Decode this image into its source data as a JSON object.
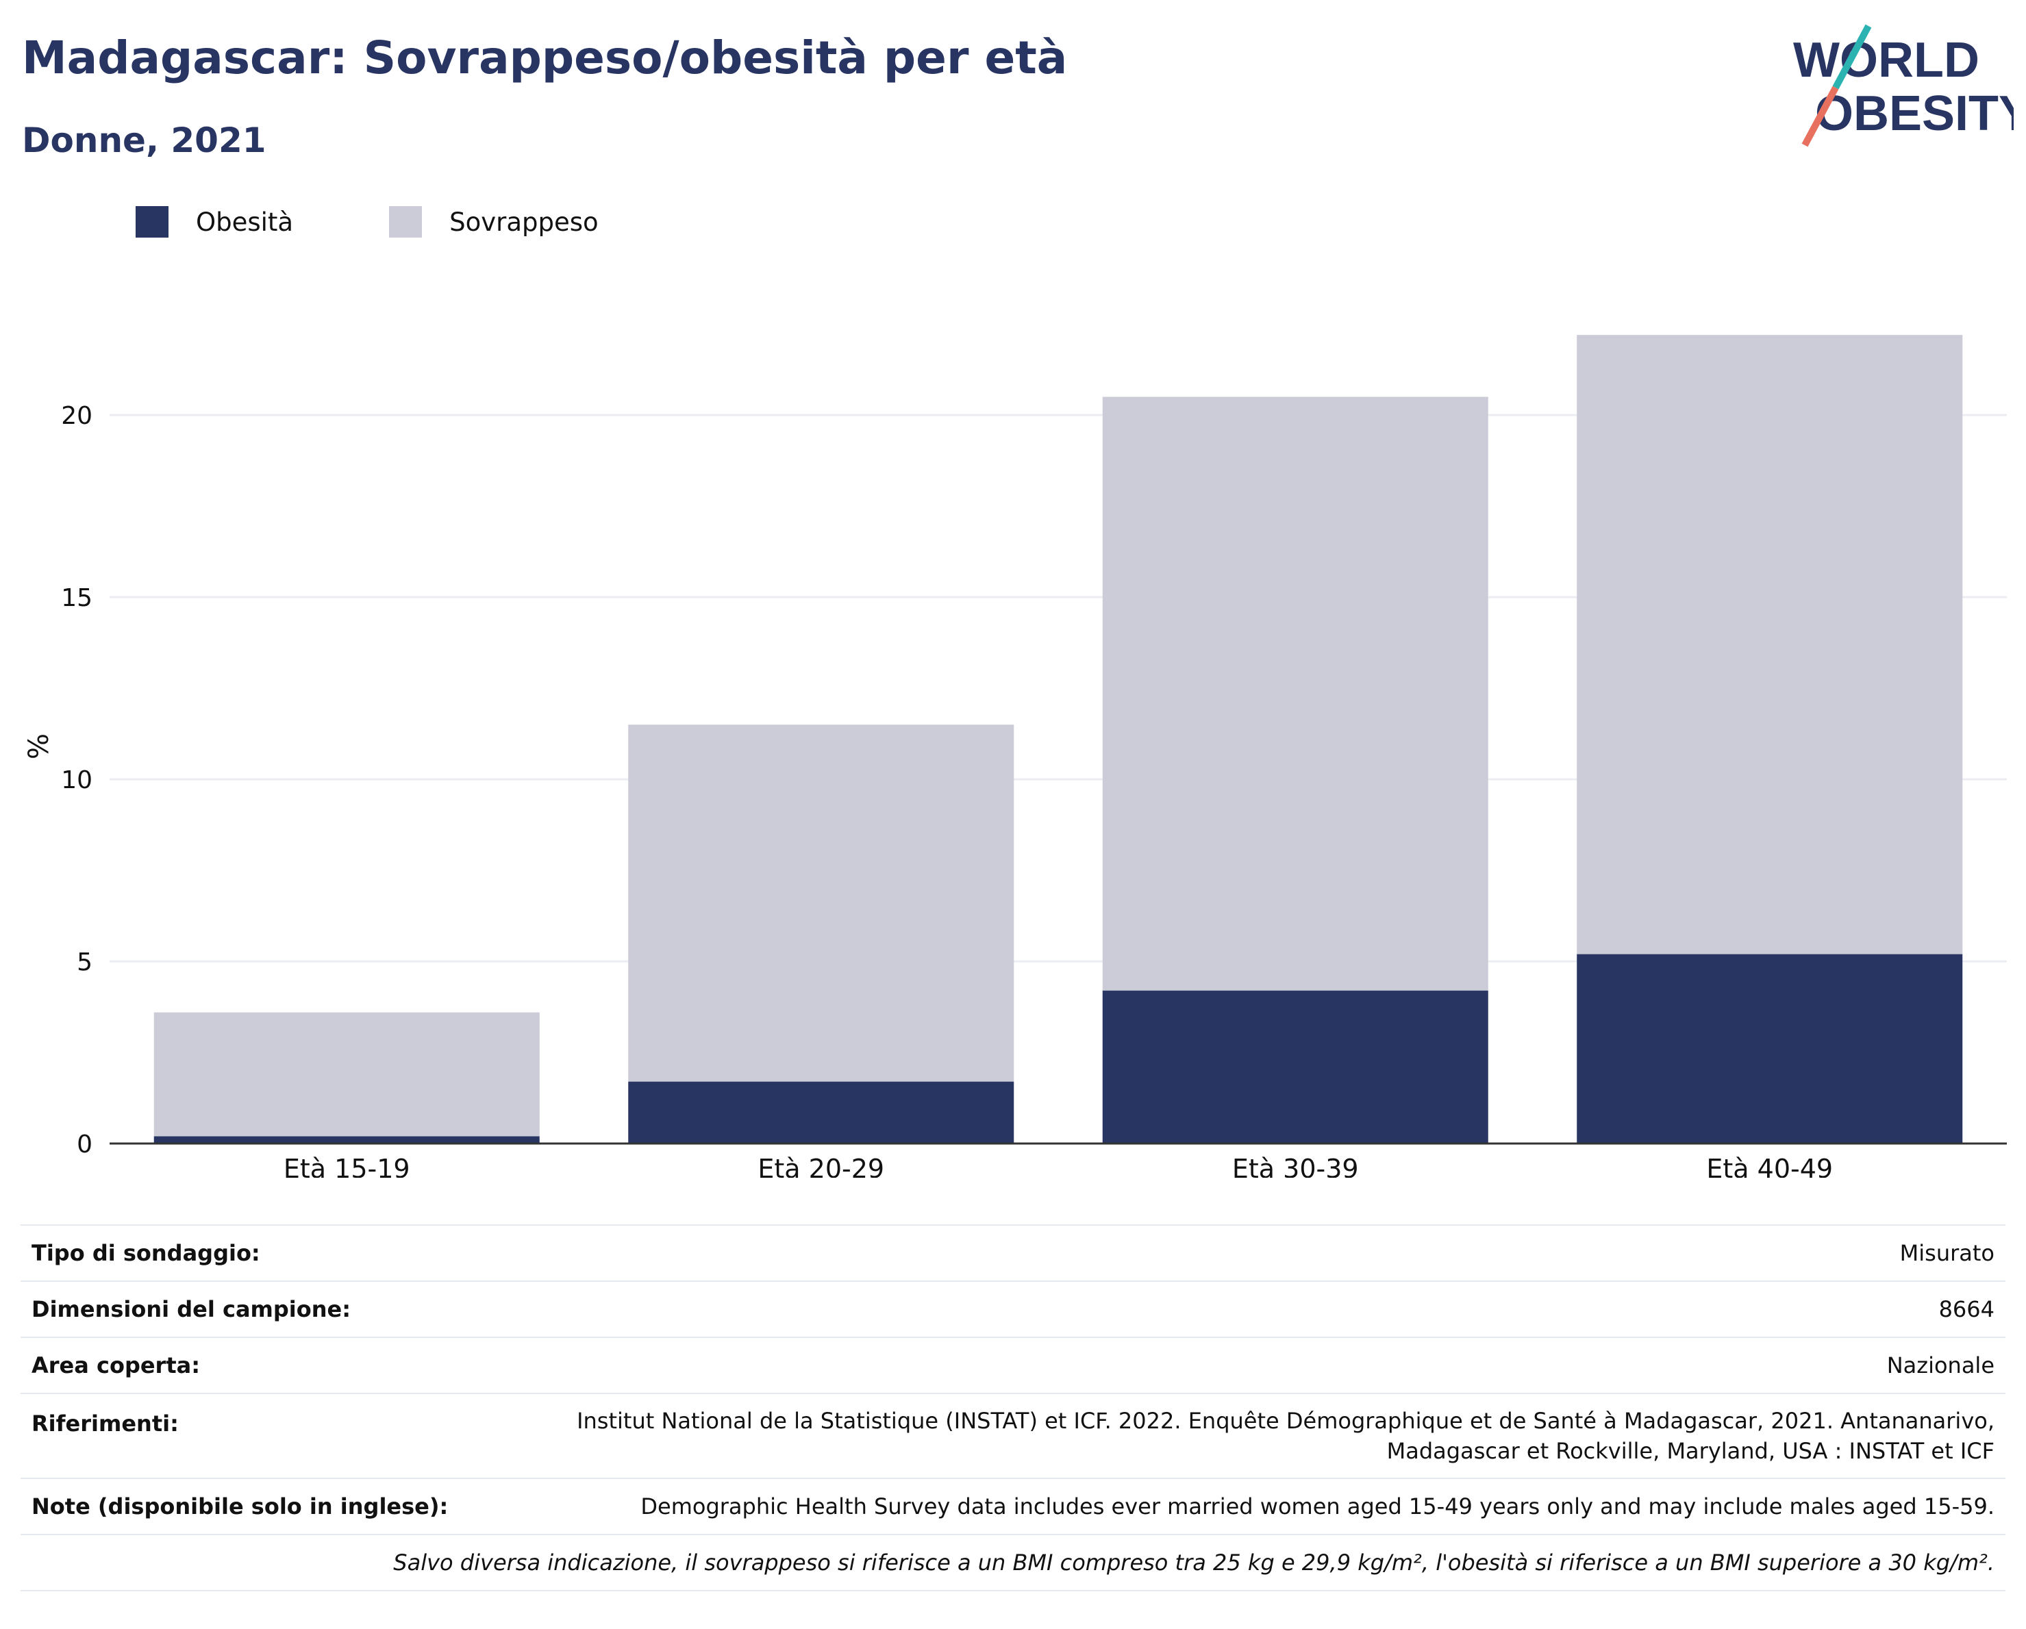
{
  "header": {
    "title": "Madagascar: Sovrappeso/obesità per età",
    "subtitle": "Donne, 2021"
  },
  "logo": {
    "line1": "WORLD",
    "line2": "OBESITY"
  },
  "colors": {
    "obesity": "#283563",
    "overweight": "#cbccd8",
    "accent_teal": "#2bb3b1",
    "accent_coral": "#e8705f"
  },
  "chart_data": {
    "type": "bar",
    "stacked": true,
    "categories": [
      "Età 15-19",
      "Età 20-29",
      "Età 30-39",
      "Età 40-49"
    ],
    "series": [
      {
        "name": "Obesità",
        "values": [
          0.2,
          1.7,
          4.2,
          5.2
        ]
      },
      {
        "name": "Sovrappeso",
        "values": [
          3.4,
          9.8,
          16.3,
          17.0
        ]
      }
    ],
    "ylabel": "%",
    "ylim": [
      0,
      23.5
    ],
    "yticks": [
      0,
      5,
      10,
      15,
      20
    ],
    "grid": true,
    "legend": "top-left"
  },
  "info": {
    "rows": [
      {
        "key": "Tipo di sondaggio:",
        "value": "Misurato"
      },
      {
        "key": "Dimensioni del campione:",
        "value": "8664"
      },
      {
        "key": "Area coperta:",
        "value": "Nazionale"
      },
      {
        "key": "Riferimenti:",
        "value_line1": "Institut National de la Statistique (INSTAT) et ICF. 2022. Enquête Démographique et de Santé à Madagascar, 2021. Antananarivo,",
        "value_line2": "Madagascar et Rockville, Maryland, USA : INSTAT et ICF"
      },
      {
        "key": "Note (disponibile solo in inglese):",
        "value": "Demographic Health Survey data includes ever married women aged 15-49 years only and may include males aged 15-59."
      }
    ],
    "footnote": "Salvo diversa indicazione, il sovrappeso si riferisce a un BMI compreso tra 25 kg e 29,9 kg/m², l'obesità si riferisce a un BMI superiore a 30 kg/m²."
  }
}
